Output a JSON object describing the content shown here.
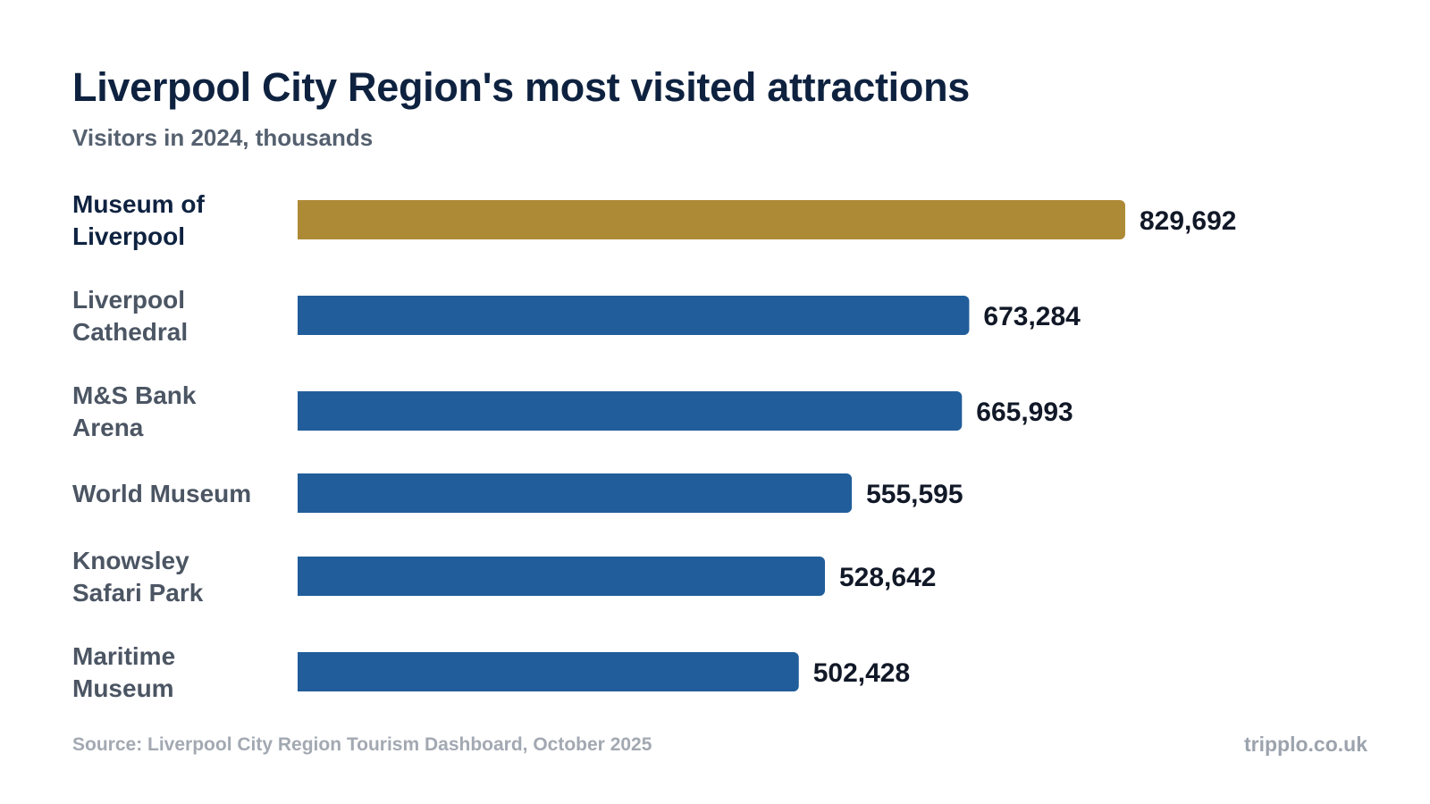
{
  "colors": {
    "highlight": "#ad8b36",
    "bar": "#215d9a",
    "title": "#0e2240"
  },
  "chart_data": {
    "type": "bar",
    "orientation": "horizontal",
    "title": "Liverpool City Region's most visited attractions",
    "subtitle": "Visitors in 2024, thousands",
    "categories": [
      "Museum of Liverpool",
      "Liverpool Cathedral",
      "M&S Bank Arena",
      "World Museum",
      "Knowsley Safari Park",
      "Maritime Museum"
    ],
    "values": [
      829692,
      673284,
      665993,
      555595,
      528642,
      502428
    ],
    "value_labels": [
      "829,692",
      "673,284",
      "665,993",
      "555,595",
      "528,642",
      "502,428"
    ],
    "highlight_index": 0,
    "xlim": [
      0,
      829692
    ],
    "grid": false,
    "legend": "none"
  },
  "footer": {
    "source": "Source: Liverpool City Region Tourism Dashboard, October 2025",
    "brand": "tripplo.co.uk"
  }
}
